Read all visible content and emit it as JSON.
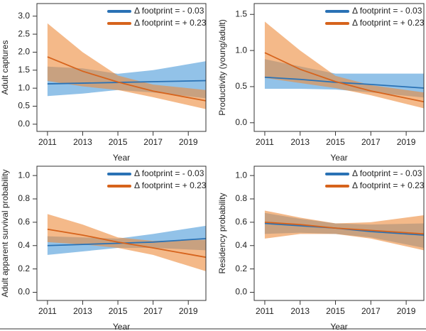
{
  "chart_data": [
    {
      "type": "line",
      "y_label": "Adult captures",
      "x_label": "Year",
      "x": [
        2011,
        2013,
        2015,
        2017,
        2020
      ],
      "xlim": [
        2010.4,
        2020
      ],
      "xticks": [
        2011,
        2013,
        2015,
        2017,
        2019
      ],
      "ylim": [
        -0.2,
        3.35
      ],
      "yticks": [
        {
          "value": 0,
          "label": "0.0"
        },
        0.5,
        {
          "value": 1,
          "label": "1.0"
        },
        1.5,
        {
          "value": 2,
          "label": "2.0"
        },
        2.5,
        {
          "value": 3,
          "label": "3.0"
        }
      ],
      "legend": "top-right",
      "series": [
        {
          "name": "Δ footprint = - 0.03",
          "color": "#2a72b5",
          "band_color": "#4a9ad8",
          "values": [
            1.12,
            1.14,
            1.16,
            1.18,
            1.21
          ],
          "lower": [
            0.78,
            0.85,
            0.95,
            0.88,
            0.72
          ],
          "upper": [
            1.6,
            1.55,
            1.4,
            1.5,
            1.75
          ]
        },
        {
          "name": "Δ footprint = + 0.23",
          "color": "#d6631c",
          "band_color": "#ec8a3a",
          "values": [
            1.87,
            1.47,
            1.17,
            0.92,
            0.65
          ],
          "lower": [
            1.2,
            1.05,
            0.95,
            0.75,
            0.42
          ],
          "upper": [
            2.8,
            2.0,
            1.35,
            1.1,
            0.95
          ]
        }
      ]
    },
    {
      "type": "line",
      "y_label": "Productivity (young/adult)",
      "x_label": "Year",
      "x": [
        2011,
        2013,
        2015,
        2017,
        2020
      ],
      "xlim": [
        2010.4,
        2020
      ],
      "xticks": [
        2011,
        2013,
        2015,
        2017,
        2019
      ],
      "ylim": [
        -0.12,
        1.65
      ],
      "yticks": [
        {
          "value": 0,
          "label": "0.0"
        },
        0.5,
        {
          "value": 1,
          "label": "1.0"
        },
        1.5
      ],
      "legend": "top-right",
      "series": [
        {
          "name": "Δ footprint = - 0.03",
          "color": "#2a72b5",
          "band_color": "#4a9ad8",
          "values": [
            0.63,
            0.6,
            0.56,
            0.53,
            0.48
          ],
          "lower": [
            0.47,
            0.47,
            0.46,
            0.42,
            0.35
          ],
          "upper": [
            0.88,
            0.78,
            0.68,
            0.68,
            0.68
          ]
        },
        {
          "name": "Δ footprint = + 0.23",
          "color": "#d6631c",
          "band_color": "#ec8a3a",
          "values": [
            0.97,
            0.74,
            0.57,
            0.44,
            0.29
          ],
          "lower": [
            0.62,
            0.55,
            0.48,
            0.38,
            0.2
          ],
          "upper": [
            1.4,
            1.0,
            0.65,
            0.52,
            0.42
          ]
        }
      ]
    },
    {
      "type": "line",
      "y_label": "Adult apparent survival probability",
      "x_label": "Year",
      "x": [
        2011,
        2013,
        2015,
        2017,
        2020
      ],
      "xlim": [
        2010.4,
        2020
      ],
      "xticks": [
        2011,
        2013,
        2015,
        2017,
        2019
      ],
      "ylim": [
        -0.07,
        1.08
      ],
      "yticks": [
        {
          "value": 0,
          "label": "0.0"
        },
        0.2,
        0.4,
        0.6,
        0.8,
        {
          "value": 1,
          "label": "1.0"
        }
      ],
      "legend": "top-right",
      "series": [
        {
          "name": "Δ footprint = - 0.03",
          "color": "#2a72b5",
          "band_color": "#4a9ad8",
          "values": [
            0.4,
            0.41,
            0.42,
            0.43,
            0.46
          ],
          "lower": [
            0.32,
            0.35,
            0.38,
            0.38,
            0.36
          ],
          "upper": [
            0.48,
            0.47,
            0.46,
            0.5,
            0.57
          ]
        },
        {
          "name": "Δ footprint = + 0.23",
          "color": "#d6631c",
          "band_color": "#ec8a3a",
          "values": [
            0.54,
            0.49,
            0.43,
            0.38,
            0.3
          ],
          "lower": [
            0.43,
            0.41,
            0.38,
            0.32,
            0.18
          ],
          "upper": [
            0.67,
            0.58,
            0.47,
            0.44,
            0.45
          ]
        }
      ]
    },
    {
      "type": "line",
      "y_label": "Residency probability",
      "x_label": "Year",
      "x": [
        2011,
        2013,
        2015,
        2017,
        2020
      ],
      "xlim": [
        2010.4,
        2020
      ],
      "xticks": [
        2011,
        2013,
        2015,
        2017,
        2019
      ],
      "ylim": [
        -0.07,
        1.08
      ],
      "yticks": [
        {
          "value": 0,
          "label": "0.0"
        },
        0.2,
        0.4,
        0.6,
        0.8,
        {
          "value": 1,
          "label": "1.0"
        }
      ],
      "legend": "top-right",
      "series": [
        {
          "name": "Δ footprint = - 0.03",
          "color": "#2a72b5",
          "band_color": "#4a9ad8",
          "values": [
            0.59,
            0.57,
            0.55,
            0.52,
            0.49
          ],
          "lower": [
            0.5,
            0.51,
            0.5,
            0.47,
            0.38
          ],
          "upper": [
            0.68,
            0.63,
            0.59,
            0.58,
            0.59
          ]
        },
        {
          "name": "Δ footprint = + 0.23",
          "color": "#d6631c",
          "band_color": "#ec8a3a",
          "values": [
            0.6,
            0.58,
            0.55,
            0.53,
            0.5
          ],
          "lower": [
            0.46,
            0.5,
            0.5,
            0.46,
            0.36
          ],
          "upper": [
            0.7,
            0.64,
            0.59,
            0.6,
            0.66
          ]
        }
      ]
    }
  ]
}
